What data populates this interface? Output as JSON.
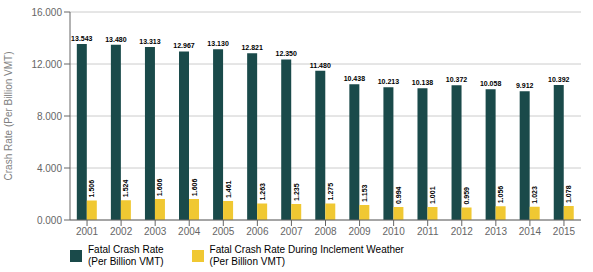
{
  "chart_data": {
    "type": "bar",
    "categories": [
      "2001",
      "2002",
      "2003",
      "2004",
      "2005",
      "2006",
      "2007",
      "2008",
      "2009",
      "2010",
      "2011",
      "2012",
      "2013",
      "2014",
      "2015"
    ],
    "series": [
      {
        "name": "Fatal Crash Rate\n(Per Billion VMT)",
        "color": "#1a4a4a",
        "values": [
          13.543,
          13.48,
          13.313,
          12.967,
          13.13,
          12.821,
          12.35,
          11.48,
          10.438,
          10.213,
          10.138,
          10.372,
          10.058,
          9.912,
          10.392
        ],
        "value_labels": [
          "13.543",
          "13.480",
          "13.313",
          "12.967",
          "13.130",
          "12.821",
          "12.350",
          "11.480",
          "10.438",
          "10.213",
          "10.138",
          "10.372",
          "10.058",
          "9.912",
          "10.392"
        ]
      },
      {
        "name": "Fatal Crash Rate During Inclement Weather\n(Per Billion VMT)",
        "color": "#f0c832",
        "values": [
          1.506,
          1.524,
          1.606,
          1.606,
          1.461,
          1.263,
          1.235,
          1.275,
          1.153,
          0.994,
          1.001,
          0.959,
          1.056,
          1.023,
          1.078
        ],
        "value_labels": [
          "1.506",
          "1.524",
          "1.606",
          "1.606",
          "1.461",
          "1.263",
          "1.235",
          "1.275",
          "1.153",
          "0.994",
          "1.001",
          "0.959",
          "1.056",
          "1.023",
          "1.078"
        ]
      }
    ],
    "ylabel": "Crash Rate (Per Billion VMT)",
    "ylim": [
      0,
      16
    ],
    "yticks": [
      {
        "value": 0,
        "label": "0.000"
      },
      {
        "value": 4,
        "label": "4.000"
      },
      {
        "value": 8,
        "label": "8.000"
      },
      {
        "value": 12,
        "label": "12.000"
      },
      {
        "value": 16,
        "label": "16.000"
      }
    ],
    "grid": true,
    "legend": "bottom left",
    "data_labels": true
  }
}
